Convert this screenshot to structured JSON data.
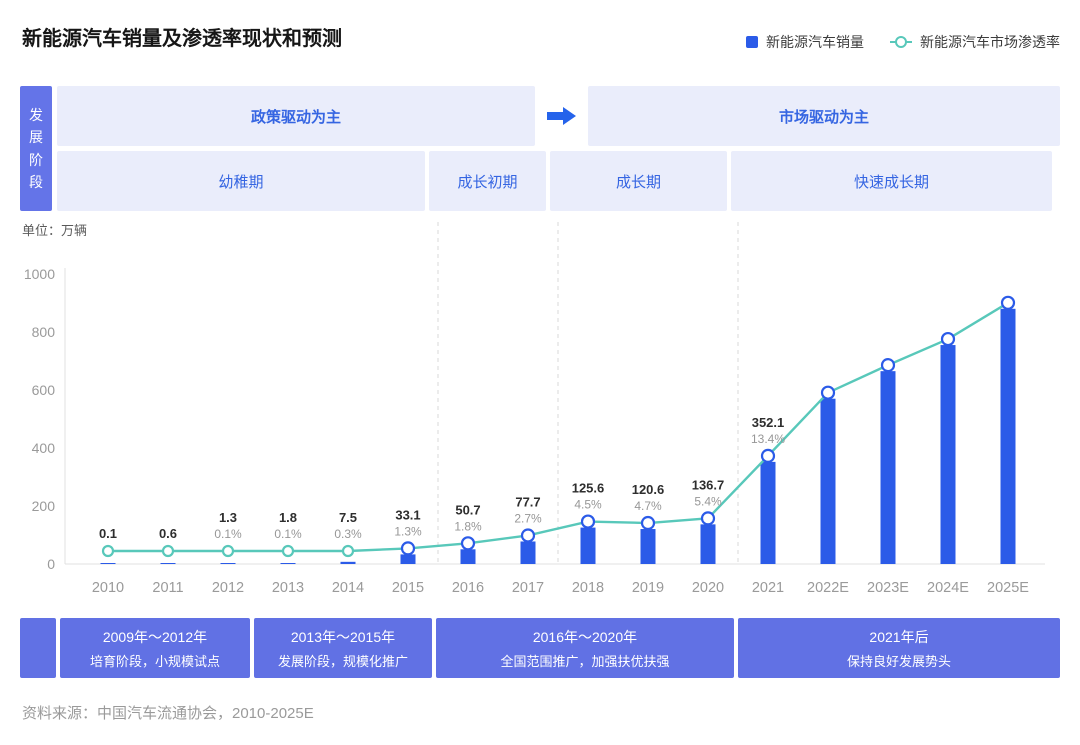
{
  "header": {
    "title": "新能源汽车销量及渗透率现状和预测",
    "legend": [
      {
        "label": "新能源汽车销量",
        "icon": "blue-square",
        "color": "#2B5BE8"
      },
      {
        "label": "新能源汽车市场渗透率",
        "icon": "teal-circle-line",
        "color": "#58C8BA"
      }
    ]
  },
  "stage_banner": {
    "side_label": "发展阶段",
    "drivers": [
      {
        "label": "政策驱动为主"
      },
      {
        "label": "市场驱动为主"
      }
    ],
    "phases": [
      "幼稚期",
      "成长初期",
      "成长期",
      "快速成长期"
    ]
  },
  "unit_label": "单位：万辆",
  "chart_data": {
    "type": "bar+line",
    "title": "新能源汽车销量及渗透率现状和预测",
    "ylabel": "单位：万辆",
    "ylim": [
      0,
      1000
    ],
    "yticks": [
      0,
      200,
      400,
      600,
      800,
      1000
    ],
    "grid": false,
    "legend_position": "top-right",
    "categories": [
      "2010",
      "2011",
      "2012",
      "2013",
      "2014",
      "2015",
      "2016",
      "2017",
      "2018",
      "2019",
      "2020",
      "2021",
      "2022E",
      "2023E",
      "2024E",
      "2025E"
    ],
    "series": [
      {
        "name": "新能源汽车销量",
        "type": "bar",
        "unit": "万辆",
        "values": [
          0.1,
          0.6,
          1.3,
          1.8,
          7.5,
          33.1,
          50.7,
          77.7,
          125.6,
          120.6,
          136.7,
          352.1,
          570,
          665,
          755,
          880
        ],
        "value_labels": [
          "0.1",
          "0.6",
          "1.3",
          "1.8",
          "7.5",
          "33.1",
          "50.7",
          "77.7",
          "125.6",
          "120.6",
          "136.7",
          "352.1",
          "",
          "",
          "",
          ""
        ]
      },
      {
        "name": "新能源汽车市场渗透率",
        "type": "line",
        "unit": "%",
        "values": [
          null,
          null,
          0.1,
          0.1,
          0.3,
          1.3,
          1.8,
          2.7,
          4.5,
          4.7,
          5.4,
          13.4,
          null,
          null,
          null,
          null
        ],
        "value_labels": [
          "",
          "",
          "0.1%",
          "0.1%",
          "0.3%",
          "1.3%",
          "1.8%",
          "2.7%",
          "4.5%",
          "4.7%",
          "5.4%",
          "13.4%",
          "",
          "",
          "",
          ""
        ]
      }
    ],
    "separators_after": [
      "2015",
      "2017",
      "2020"
    ]
  },
  "timeline": [
    {
      "period": "2009年～2012年",
      "desc": "培育阶段，小规模试点"
    },
    {
      "period": "2013年～2015年",
      "desc": "发展阶段，规模化推广"
    },
    {
      "period": "2016年～2020年",
      "desc": "全国范围推广，加强扶优扶强"
    },
    {
      "period": "2021年后",
      "desc": "保持良好发展势头"
    }
  ],
  "footer": {
    "source": "资料来源：中国汽车流通协会，2010-2025E"
  },
  "colors": {
    "bar": "#2B5BE8",
    "line": "#58C8BA",
    "marker_fill": "#FFFFFF",
    "banner_purple": "#6474E8",
    "timeline_purple": "#6171E4",
    "banner_light": "#EAEDFB",
    "banner_text": "#3565E2",
    "arrow": "#2563EB",
    "axis": "#E0E0E0",
    "separator": "#D9D9D9"
  }
}
